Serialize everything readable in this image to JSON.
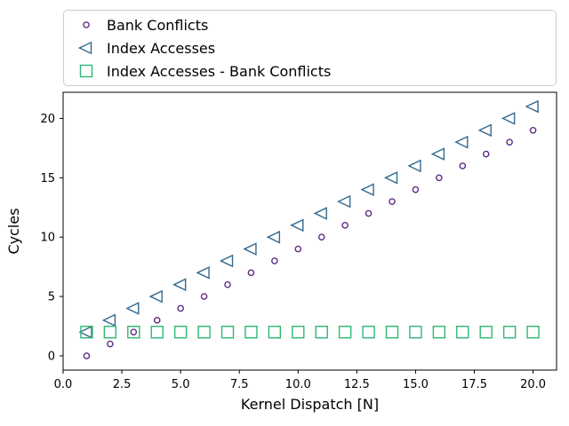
{
  "figure": {
    "background": "#ffffff"
  },
  "legend": {
    "border_color": "#cccccc",
    "entries": [
      {
        "label": "Bank Conflicts",
        "marker": "circle",
        "color": "#5e2b85"
      },
      {
        "label": "Index Accesses",
        "marker": "triangle-left",
        "color": "#336a8e"
      },
      {
        "label": "Index Accesses - Bank Conflicts",
        "marker": "square",
        "color": "#2eb873"
      }
    ]
  },
  "chart_data": {
    "type": "scatter",
    "title": "",
    "xlabel": "Kernel Dispatch [N]",
    "ylabel": "Cycles",
    "xlim": [
      0,
      21
    ],
    "ylim": [
      -1.2,
      22.2
    ],
    "grid": false,
    "legend_position": "top-expanded",
    "x": [
      1,
      2,
      3,
      4,
      5,
      6,
      7,
      8,
      9,
      10,
      11,
      12,
      13,
      14,
      15,
      16,
      17,
      18,
      19,
      20
    ],
    "series": [
      {
        "name": "Bank Conflicts",
        "marker": "circle",
        "color": "#5e2b85",
        "values": [
          0,
          1,
          2,
          3,
          4,
          5,
          6,
          7,
          8,
          9,
          10,
          11,
          12,
          13,
          14,
          15,
          16,
          17,
          18,
          19
        ]
      },
      {
        "name": "Index Accesses",
        "marker": "triangle-left",
        "color": "#336a8e",
        "values": [
          2,
          3,
          4,
          5,
          6,
          7,
          8,
          9,
          10,
          11,
          12,
          13,
          14,
          15,
          16,
          17,
          18,
          19,
          20,
          21
        ]
      },
      {
        "name": "Index Accesses - Bank Conflicts",
        "marker": "square",
        "color": "#2eb873",
        "values": [
          2,
          2,
          2,
          2,
          2,
          2,
          2,
          2,
          2,
          2,
          2,
          2,
          2,
          2,
          2,
          2,
          2,
          2,
          2,
          2
        ]
      }
    ],
    "xticks": {
      "values": [
        0,
        2.5,
        5,
        7.5,
        10,
        12.5,
        15,
        17.5,
        20
      ],
      "labels": [
        "0.0",
        "2.5",
        "5.0",
        "7.5",
        "10.0",
        "12.5",
        "15.0",
        "17.5",
        "20.0"
      ]
    },
    "yticks": {
      "values": [
        0,
        5,
        10,
        15,
        20
      ],
      "labels": [
        "0",
        "5",
        "10",
        "15",
        "20"
      ]
    }
  }
}
